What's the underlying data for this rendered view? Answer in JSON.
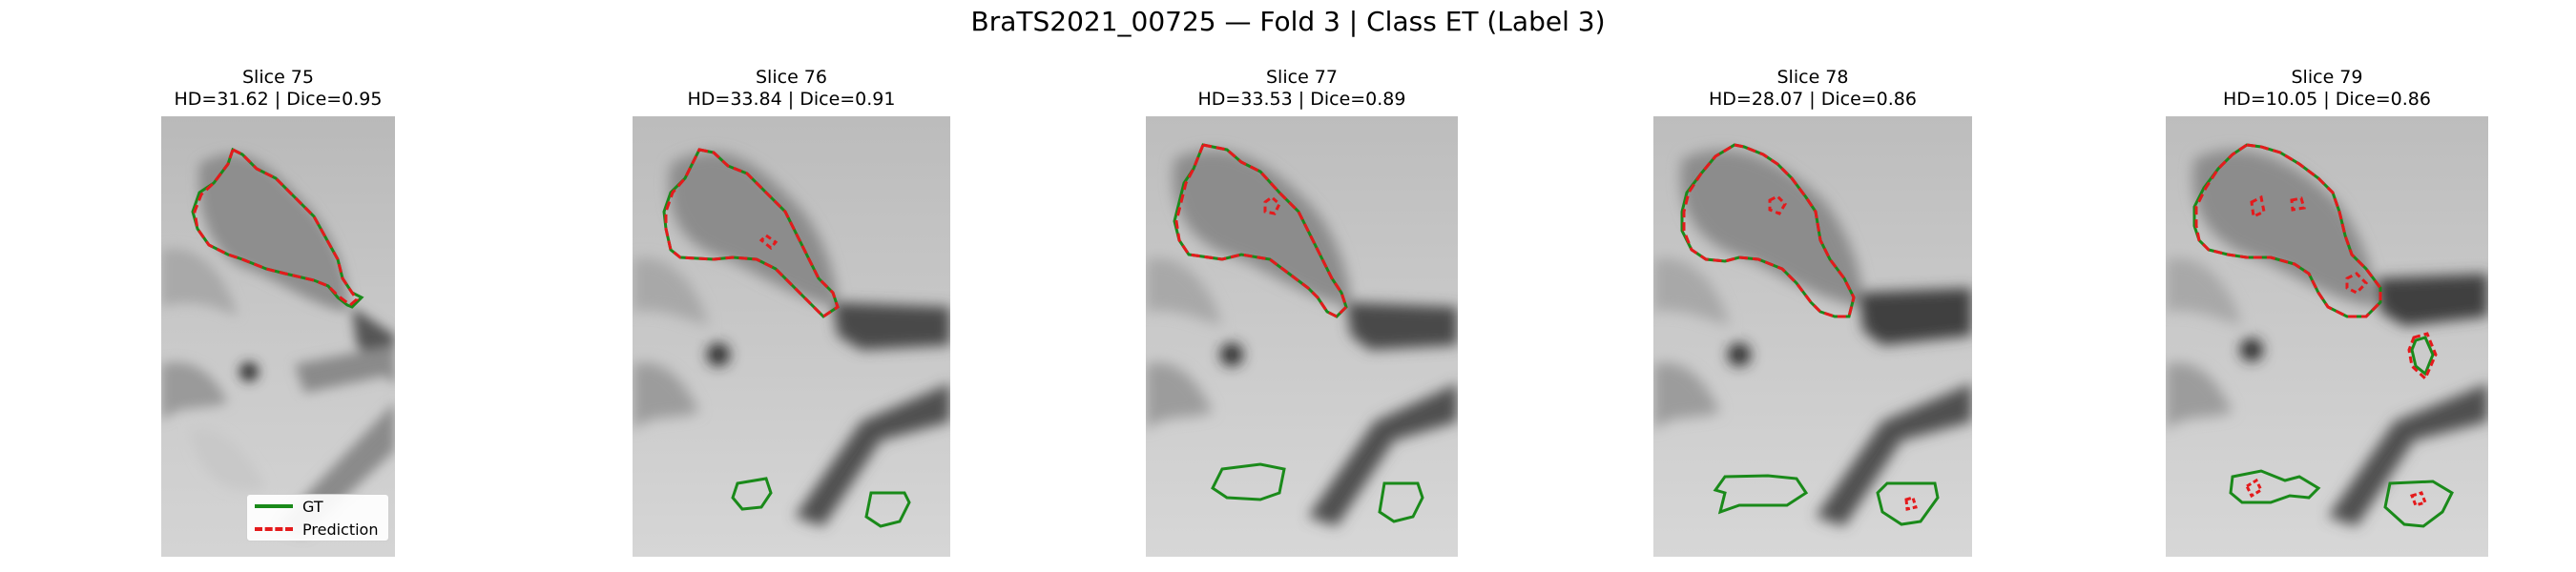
{
  "figure": {
    "title": "BraTS2021_00725 — Fold 3 | Class ET (Label 3)"
  },
  "panels": [
    {
      "slice": "Slice 75",
      "metrics": "HD=31.62 | Dice=0.95"
    },
    {
      "slice": "Slice 76",
      "metrics": "HD=33.84 | Dice=0.91"
    },
    {
      "slice": "Slice 77",
      "metrics": "HD=33.53 | Dice=0.89"
    },
    {
      "slice": "Slice 78",
      "metrics": "HD=28.07 | Dice=0.86"
    },
    {
      "slice": "Slice 79",
      "metrics": "HD=10.05 | Dice=0.86"
    }
  ],
  "legend": {
    "items": [
      {
        "label": "GT",
        "color": "#1a8a1a",
        "style": "solid"
      },
      {
        "label": "Prediction",
        "color": "#e41a1c",
        "style": "dashed"
      }
    ]
  },
  "colors": {
    "gt_contour": "#1a8a1a",
    "prediction_contour": "#e41a1c"
  }
}
